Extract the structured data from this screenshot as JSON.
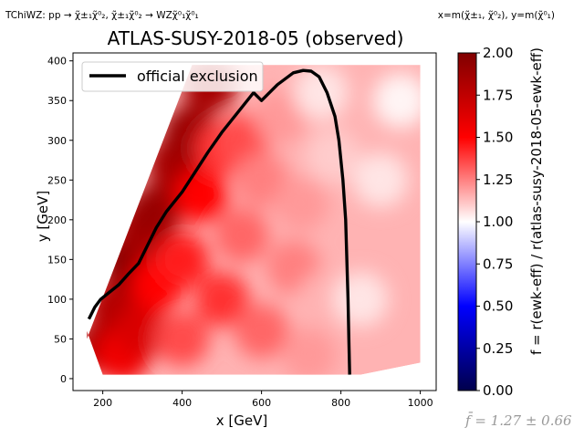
{
  "header": {
    "top_left": "TChiWZ: pp → χ̃±₁χ̃⁰₂, χ̃±₁χ̃⁰₂ → WZχ̃⁰₁χ̃⁰₁",
    "top_right": "x=m(χ̃±₁, χ̃⁰₂), y=m(χ̃⁰₁)",
    "footer": "f̄ = 1.27 ± 0.66"
  },
  "colors": {
    "exclusion_line": "#000000",
    "colormap_low": "#00004c",
    "colormap_mid": "#ffffff",
    "colormap_high": "#800000"
  },
  "chart_data": {
    "type": "heatmap",
    "title": "ATLAS-SUSY-2018-05 (observed)",
    "xlabel": "x [GeV]",
    "ylabel": "y [GeV]",
    "xlim": [
      125,
      1040
    ],
    "ylim": [
      -15,
      410
    ],
    "xticks": [
      200,
      400,
      600,
      800,
      1000
    ],
    "yticks": [
      0,
      50,
      100,
      150,
      200,
      250,
      300,
      350,
      400
    ],
    "colorbar": {
      "label": "f = r(ewk-eff) / r(atlas-susy-2018-05-ewk-eff)",
      "range": [
        0.0,
        2.0
      ],
      "ticks": [
        "0.00",
        "0.25",
        "0.50",
        "0.75",
        "1.00",
        "1.25",
        "1.50",
        "1.75",
        "2.00"
      ]
    },
    "grid": false,
    "legend": {
      "entries": [
        "official exclusion"
      ],
      "placement": "top-left"
    },
    "coverage_polygon": [
      [
        160,
        60
      ],
      [
        200,
        5
      ],
      [
        850,
        5
      ],
      [
        1000,
        20
      ],
      [
        1000,
        395
      ],
      [
        425,
        395
      ],
      [
        160,
        50
      ]
    ],
    "heatmap_samples": [
      {
        "x": 200,
        "y": 40,
        "f": 1.85
      },
      {
        "x": 230,
        "y": 90,
        "f": 1.8
      },
      {
        "x": 260,
        "y": 150,
        "f": 1.95
      },
      {
        "x": 300,
        "y": 190,
        "f": 1.85
      },
      {
        "x": 330,
        "y": 210,
        "f": 1.9
      },
      {
        "x": 380,
        "y": 270,
        "f": 1.85
      },
      {
        "x": 420,
        "y": 310,
        "f": 1.9
      },
      {
        "x": 470,
        "y": 370,
        "f": 1.85
      },
      {
        "x": 250,
        "y": 30,
        "f": 1.55
      },
      {
        "x": 300,
        "y": 60,
        "f": 1.65
      },
      {
        "x": 340,
        "y": 120,
        "f": 1.5
      },
      {
        "x": 400,
        "y": 150,
        "f": 1.45
      },
      {
        "x": 450,
        "y": 230,
        "f": 1.5
      },
      {
        "x": 500,
        "y": 290,
        "f": 1.4
      },
      {
        "x": 550,
        "y": 300,
        "f": 1.35
      },
      {
        "x": 400,
        "y": 50,
        "f": 1.35
      },
      {
        "x": 500,
        "y": 100,
        "f": 1.4
      },
      {
        "x": 550,
        "y": 180,
        "f": 1.3
      },
      {
        "x": 600,
        "y": 250,
        "f": 1.25
      },
      {
        "x": 650,
        "y": 330,
        "f": 1.2
      },
      {
        "x": 600,
        "y": 60,
        "f": 1.3
      },
      {
        "x": 680,
        "y": 140,
        "f": 1.25
      },
      {
        "x": 700,
        "y": 220,
        "f": 1.2
      },
      {
        "x": 720,
        "y": 30,
        "f": 1.2
      },
      {
        "x": 760,
        "y": 100,
        "f": 1.15
      },
      {
        "x": 780,
        "y": 280,
        "f": 1.1
      },
      {
        "x": 750,
        "y": 360,
        "f": 1.05
      },
      {
        "x": 850,
        "y": 100,
        "f": 1.05
      },
      {
        "x": 900,
        "y": 250,
        "f": 1.05
      },
      {
        "x": 950,
        "y": 350,
        "f": 1.02
      }
    ],
    "series": [
      {
        "name": "official exclusion",
        "x": [
          165,
          180,
          195,
          215,
          240,
          265,
          290,
          310,
          335,
          360,
          400,
          430,
          465,
          500,
          540,
          580,
          600,
          640,
          680,
          705,
          725,
          745,
          765,
          785,
          795,
          805,
          812,
          815,
          818,
          820,
          822
        ],
        "y": [
          75,
          90,
          100,
          108,
          118,
          132,
          145,
          165,
          190,
          210,
          235,
          258,
          285,
          310,
          335,
          360,
          350,
          370,
          385,
          388,
          387,
          380,
          360,
          330,
          300,
          250,
          200,
          150,
          100,
          50,
          5
        ]
      }
    ]
  }
}
